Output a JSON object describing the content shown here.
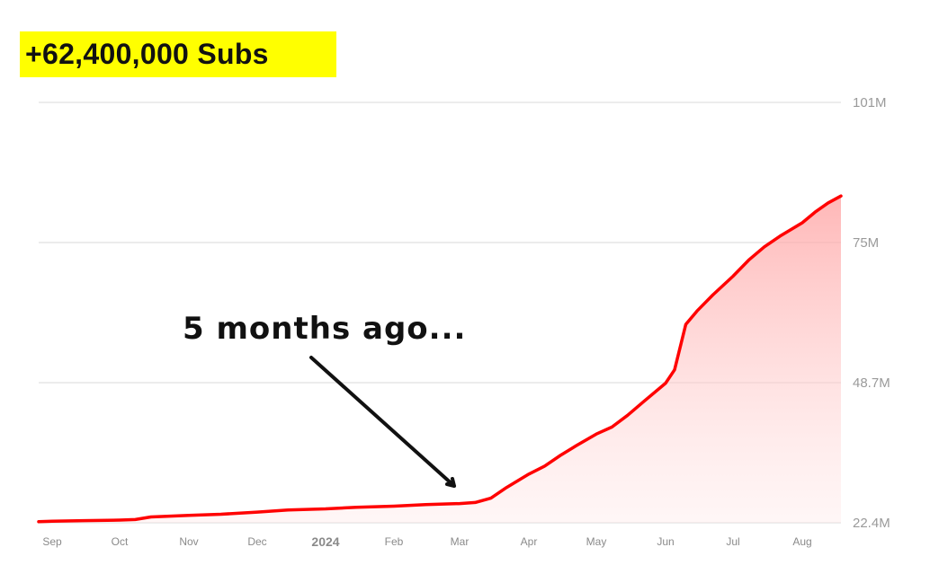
{
  "headline": "+62,400,000 Subs",
  "annotation": "5 months ago...",
  "colors": {
    "line": "#ff0000",
    "fill": "#ffb3b3",
    "highlight": "#ffff00",
    "grid": "#e6e6e6"
  },
  "chart_data": {
    "type": "area",
    "xlabel": "",
    "ylabel": "",
    "x_ticks": [
      "Sep",
      "Oct",
      "Nov",
      "Dec",
      "2024",
      "Feb",
      "Mar",
      "Apr",
      "May",
      "Jun",
      "Jul",
      "Aug"
    ],
    "y_ticks": [
      "101M",
      "75M",
      "48.7M",
      "22.4M"
    ],
    "ylim": [
      22.4,
      101
    ],
    "grid": true,
    "x": [
      "2023-08-25",
      "2023-09-01",
      "2023-09-15",
      "2023-10-01",
      "2023-10-08",
      "2023-10-15",
      "2023-11-01",
      "2023-11-15",
      "2023-12-01",
      "2023-12-15",
      "2024-01-01",
      "2024-01-15",
      "2024-02-01",
      "2024-02-15",
      "2024-03-01",
      "2024-03-08",
      "2024-03-15",
      "2024-03-22",
      "2024-04-01",
      "2024-04-08",
      "2024-04-15",
      "2024-04-22",
      "2024-05-01",
      "2024-05-08",
      "2024-05-15",
      "2024-05-22",
      "2024-06-01",
      "2024-06-05",
      "2024-06-10",
      "2024-06-15",
      "2024-06-22",
      "2024-07-01",
      "2024-07-08",
      "2024-07-15",
      "2024-07-22",
      "2024-08-01",
      "2024-08-08",
      "2024-08-15",
      "2024-08-22"
    ],
    "series": [
      {
        "values": [
          22.6,
          22.7,
          22.8,
          22.9,
          23.0,
          23.5,
          23.8,
          24.0,
          24.4,
          24.8,
          25.0,
          25.3,
          25.5,
          25.8,
          26.0,
          26.2,
          27.0,
          29.0,
          31.5,
          33.0,
          35.0,
          36.8,
          39.0,
          40.3,
          42.5,
          45.0,
          48.5,
          51.0,
          59.5,
          62.0,
          65.0,
          68.5,
          71.5,
          74.0,
          76.0,
          78.5,
          80.5,
          82.2,
          83.5
        ]
      }
    ]
  }
}
